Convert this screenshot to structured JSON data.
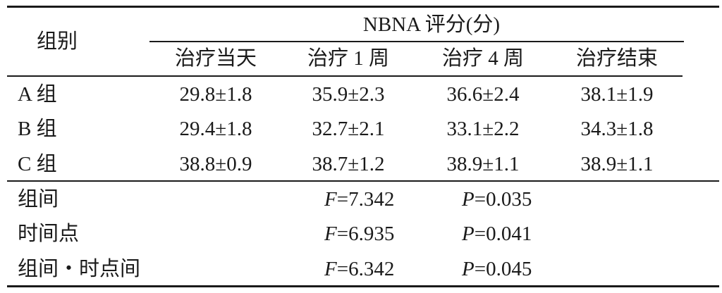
{
  "table": {
    "group_header": "组别",
    "span_header": "NBNA 评分(分)",
    "time_headers": [
      "治疗当天",
      "治疗 1 周",
      "治疗 4 周",
      "治疗结束"
    ],
    "rows": [
      {
        "group": "A 组",
        "values": [
          "29.8±1.8",
          "35.9±2.3",
          "36.6±2.4",
          "38.1±1.9"
        ]
      },
      {
        "group": "B 组",
        "values": [
          "29.4±1.8",
          "32.7±2.1",
          "33.1±2.2",
          "34.3±1.8"
        ]
      },
      {
        "group": "C 组",
        "values": [
          "38.8±0.9",
          "38.7±1.2",
          "38.9±1.1",
          "38.9±1.1"
        ]
      }
    ],
    "stats": [
      {
        "label": "组间",
        "f_symbol": "F",
        "f_value": "=7.342",
        "p_symbol": "P",
        "p_value": "=0.035"
      },
      {
        "label": "时间点",
        "f_symbol": "F",
        "f_value": "=6.935",
        "p_symbol": "P",
        "p_value": "=0.041"
      },
      {
        "label": "组间・时点间",
        "f_symbol": "F",
        "f_value": "=6.342",
        "p_symbol": "P",
        "p_value": "=0.045"
      }
    ]
  }
}
